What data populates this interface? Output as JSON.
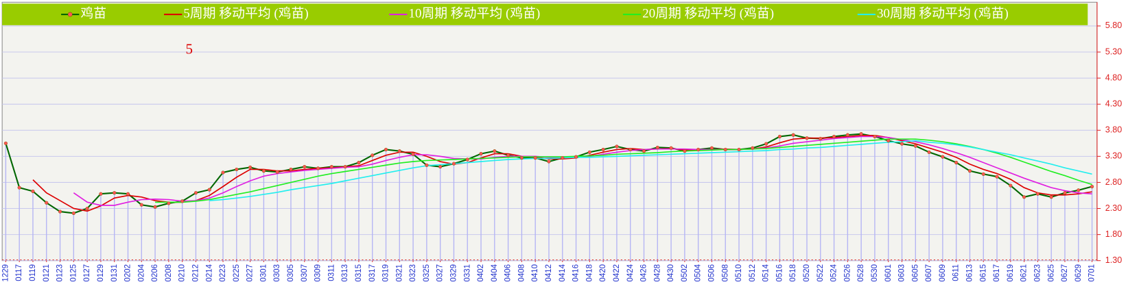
{
  "chart_data": {
    "type": "line",
    "annotation": "5",
    "categories": [
      "1229",
      "0117",
      "0119",
      "0121",
      "0123",
      "0125",
      "0127",
      "0129",
      "0131",
      "0202",
      "0204",
      "0206",
      "0208",
      "0210",
      "0212",
      "0214",
      "0223",
      "0225",
      "0227",
      "0301",
      "0303",
      "0305",
      "0307",
      "0309",
      "0311",
      "0313",
      "0315",
      "0317",
      "0319",
      "0321",
      "0323",
      "0325",
      "0327",
      "0329",
      "0331",
      "0402",
      "0404",
      "0406",
      "0408",
      "0410",
      "0412",
      "0414",
      "0416",
      "0418",
      "0420",
      "0422",
      "0424",
      "0426",
      "0428",
      "0430",
      "0502",
      "0504",
      "0506",
      "0508",
      "0510",
      "0512",
      "0514",
      "0516",
      "0518",
      "0520",
      "0522",
      "0524",
      "0526",
      "0528",
      "0530",
      "0601",
      "0603",
      "0605",
      "0607",
      "0609",
      "0611",
      "0613",
      "0615",
      "0617",
      "0619",
      "0621",
      "0623",
      "0625",
      "0627",
      "0629",
      "0701"
    ],
    "series": [
      {
        "name": "鸡苗",
        "color": "#006600",
        "marker_color": "#ff5555",
        "values": [
          3.55,
          2.7,
          2.63,
          2.41,
          2.24,
          2.21,
          2.3,
          2.58,
          2.6,
          2.58,
          2.37,
          2.33,
          2.4,
          2.44,
          2.6,
          2.66,
          2.99,
          3.05,
          3.09,
          3.02,
          3.0,
          3.05,
          3.1,
          3.07,
          3.1,
          3.1,
          3.18,
          3.32,
          3.43,
          3.4,
          3.34,
          3.13,
          3.1,
          3.16,
          3.24,
          3.35,
          3.4,
          3.32,
          3.27,
          3.27,
          3.2,
          3.27,
          3.29,
          3.38,
          3.43,
          3.49,
          3.43,
          3.4,
          3.47,
          3.46,
          3.4,
          3.43,
          3.46,
          3.43,
          3.43,
          3.46,
          3.54,
          3.68,
          3.71,
          3.65,
          3.64,
          3.68,
          3.71,
          3.73,
          3.68,
          3.6,
          3.54,
          3.5,
          3.38,
          3.29,
          3.18,
          3.02,
          2.96,
          2.91,
          2.74,
          2.52,
          2.58,
          2.52,
          2.6,
          2.65,
          2.72
        ]
      },
      {
        "name": "5周期 移动平均 (鸡苗)",
        "color": "#dd0000",
        "values": [
          null,
          null,
          2.85,
          2.6,
          2.45,
          2.3,
          2.25,
          2.35,
          2.5,
          2.55,
          2.52,
          2.45,
          2.42,
          2.42,
          2.45,
          2.55,
          2.72,
          2.9,
          3.05,
          3.05,
          3.02,
          3.02,
          3.05,
          3.07,
          3.08,
          3.1,
          3.12,
          3.22,
          3.32,
          3.38,
          3.38,
          3.3,
          3.2,
          3.15,
          3.18,
          3.27,
          3.35,
          3.35,
          3.3,
          3.28,
          3.25,
          3.25,
          3.27,
          3.32,
          3.38,
          3.43,
          3.45,
          3.43,
          3.44,
          3.45,
          3.42,
          3.42,
          3.43,
          3.44,
          3.43,
          3.44,
          3.48,
          3.56,
          3.63,
          3.65,
          3.65,
          3.66,
          3.68,
          3.7,
          3.7,
          3.66,
          3.6,
          3.54,
          3.46,
          3.38,
          3.28,
          3.15,
          3.05,
          2.97,
          2.86,
          2.7,
          2.6,
          2.56,
          2.56,
          2.58,
          2.62
        ]
      },
      {
        "name": "10周期 移动平均 (鸡苗)",
        "color": "#e020e0",
        "values": [
          null,
          null,
          null,
          null,
          null,
          2.6,
          2.42,
          2.36,
          2.36,
          2.42,
          2.47,
          2.48,
          2.47,
          2.44,
          2.45,
          2.5,
          2.6,
          2.72,
          2.83,
          2.92,
          2.97,
          3.0,
          3.03,
          3.05,
          3.07,
          3.09,
          3.1,
          3.15,
          3.22,
          3.28,
          3.33,
          3.33,
          3.3,
          3.26,
          3.25,
          3.25,
          3.28,
          3.3,
          3.3,
          3.3,
          3.28,
          3.27,
          3.28,
          3.3,
          3.34,
          3.38,
          3.41,
          3.43,
          3.44,
          3.44,
          3.44,
          3.43,
          3.43,
          3.43,
          3.43,
          3.44,
          3.46,
          3.5,
          3.55,
          3.58,
          3.61,
          3.64,
          3.66,
          3.68,
          3.68,
          3.66,
          3.62,
          3.58,
          3.52,
          3.45,
          3.37,
          3.28,
          3.18,
          3.08,
          2.98,
          2.88,
          2.79,
          2.7,
          2.64,
          2.6,
          2.58
        ]
      },
      {
        "name": "20周期 移动平均 (鸡苗)",
        "color": "#22ee22",
        "values": [
          null,
          null,
          null,
          null,
          null,
          null,
          null,
          null,
          null,
          null,
          null,
          2.42,
          2.42,
          2.42,
          2.44,
          2.47,
          2.52,
          2.57,
          2.62,
          2.68,
          2.74,
          2.8,
          2.86,
          2.92,
          2.97,
          3.01,
          3.05,
          3.09,
          3.13,
          3.17,
          3.2,
          3.22,
          3.23,
          3.24,
          3.25,
          3.26,
          3.27,
          3.28,
          3.29,
          3.29,
          3.29,
          3.29,
          3.3,
          3.31,
          3.32,
          3.34,
          3.35,
          3.36,
          3.37,
          3.39,
          3.4,
          3.41,
          3.42,
          3.43,
          3.43,
          3.44,
          3.45,
          3.47,
          3.49,
          3.51,
          3.53,
          3.55,
          3.57,
          3.59,
          3.61,
          3.63,
          3.63,
          3.63,
          3.61,
          3.58,
          3.54,
          3.49,
          3.43,
          3.36,
          3.28,
          3.19,
          3.1,
          3.01,
          2.93,
          2.84,
          2.76
        ]
      },
      {
        "name": "30周期 移动平均 (鸡苗)",
        "color": "#22eeee",
        "values": [
          null,
          null,
          null,
          null,
          null,
          null,
          null,
          null,
          null,
          null,
          null,
          null,
          null,
          null,
          null,
          2.45,
          2.47,
          2.5,
          2.53,
          2.57,
          2.61,
          2.66,
          2.7,
          2.74,
          2.78,
          2.83,
          2.88,
          2.93,
          2.98,
          3.03,
          3.08,
          3.12,
          3.14,
          3.16,
          3.18,
          3.2,
          3.22,
          3.24,
          3.25,
          3.26,
          3.26,
          3.27,
          3.28,
          3.28,
          3.29,
          3.3,
          3.31,
          3.32,
          3.33,
          3.34,
          3.35,
          3.36,
          3.37,
          3.38,
          3.39,
          3.4,
          3.41,
          3.43,
          3.44,
          3.46,
          3.47,
          3.49,
          3.51,
          3.53,
          3.55,
          3.57,
          3.58,
          3.6,
          3.57,
          3.55,
          3.52,
          3.48,
          3.43,
          3.38,
          3.33,
          3.27,
          3.21,
          3.15,
          3.08,
          3.02,
          2.96
        ]
      }
    ],
    "ylim": [
      1.3,
      6.2
    ],
    "yticks": [
      {
        "value": 1.3,
        "label": "1.30"
      },
      {
        "value": 1.8,
        "label": "1.80"
      },
      {
        "value": 2.3,
        "label": "2.30"
      },
      {
        "value": 2.8,
        "label": "2.80"
      },
      {
        "value": 3.3,
        "label": "3.30"
      },
      {
        "value": 3.8,
        "label": "3.80"
      },
      {
        "value": 4.3,
        "label": "4.30"
      },
      {
        "value": 4.8,
        "label": "4.80"
      },
      {
        "value": 5.3,
        "label": "5.30"
      },
      {
        "value": 5.8,
        "label": "5.80"
      }
    ],
    "grid": true,
    "drop_lines": true,
    "legend": "top"
  }
}
